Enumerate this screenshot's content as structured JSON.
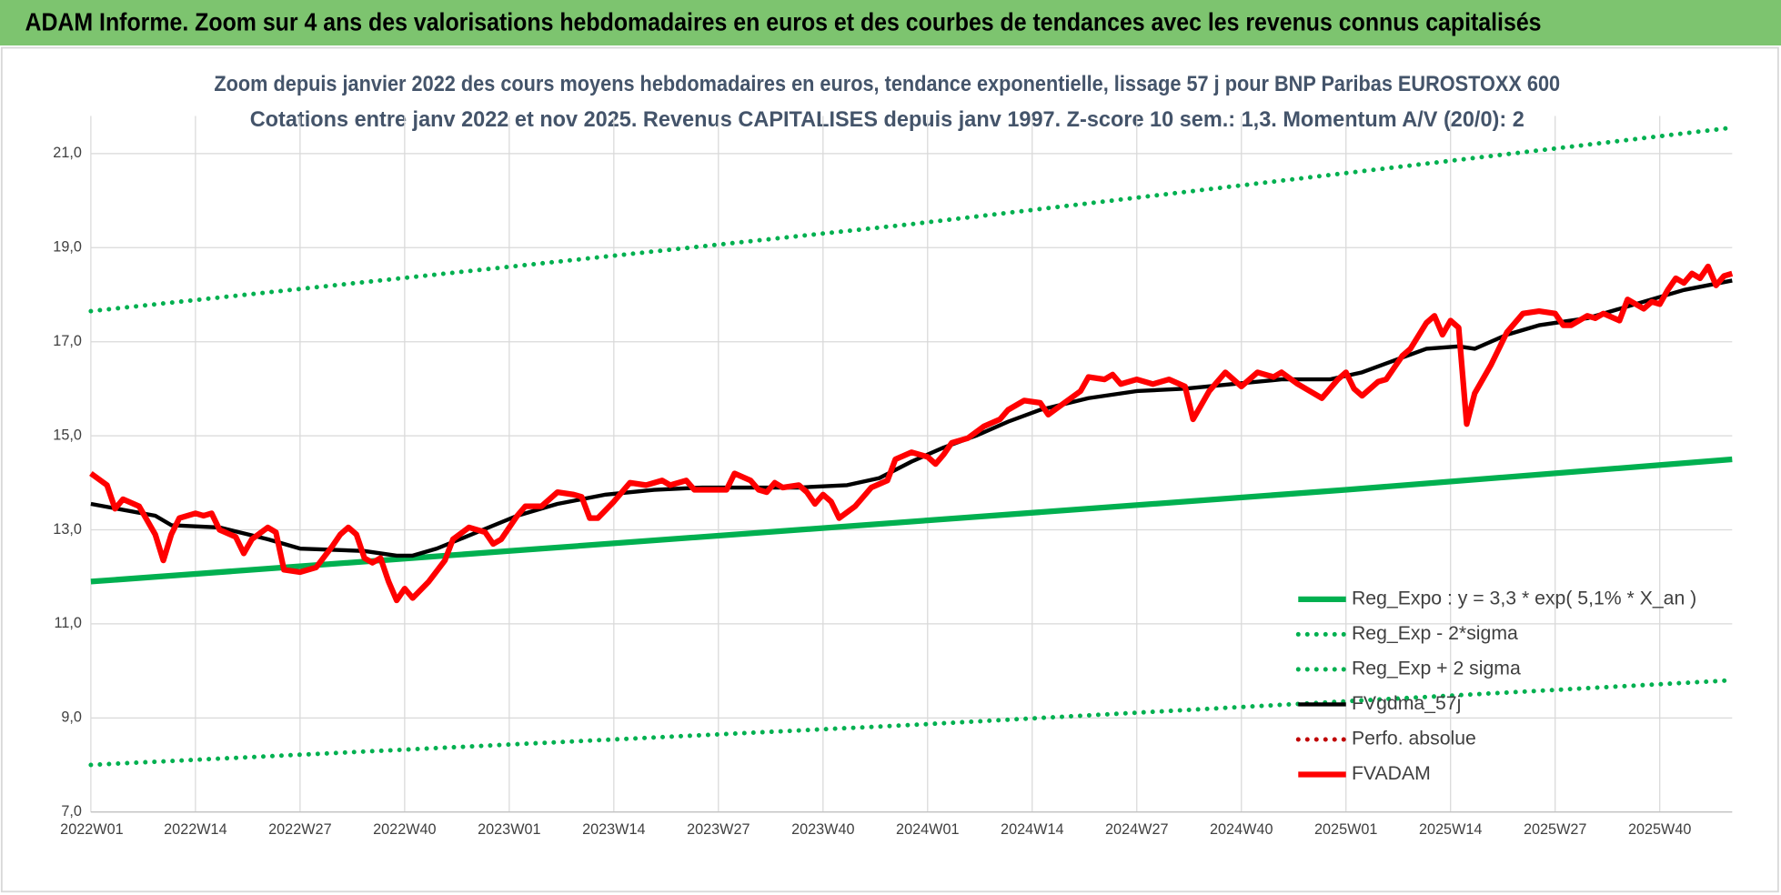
{
  "chart_data": {
    "type": "line",
    "header": "ADAM Informe. Zoom sur 4 ans des valorisations hebdomadaires en euros et des courbes de tendances avec les revenus connus capitalisés",
    "title": "Zoom depuis janvier 2022 des cours moyens hebdomadaires en euros, tendance exponentielle, lissage 57 j pour BNP Paribas EUROSTOXX 600",
    "subtitle": "Cotations entre janv 2022 et nov 2025. Revenus CAPITALISES depuis janv 1997. Z-score 10 sem.: 1,3. Momentum A/V (20/0): 2",
    "xlim": [
      0,
      204
    ],
    "xticks": [
      {
        "value": 0,
        "label": "2022W01"
      },
      {
        "value": 13,
        "label": "2022W14"
      },
      {
        "value": 26,
        "label": "2022W27"
      },
      {
        "value": 39,
        "label": "2022W40"
      },
      {
        "value": 52,
        "label": "2023W01"
      },
      {
        "value": 65,
        "label": "2023W14"
      },
      {
        "value": 78,
        "label": "2023W27"
      },
      {
        "value": 91,
        "label": "2023W40"
      },
      {
        "value": 104,
        "label": "2024W01"
      },
      {
        "value": 117,
        "label": "2024W14"
      },
      {
        "value": 130,
        "label": "2024W27"
      },
      {
        "value": 143,
        "label": "2024W40"
      },
      {
        "value": 156,
        "label": "2025W01"
      },
      {
        "value": 169,
        "label": "2025W14"
      },
      {
        "value": 182,
        "label": "2025W27"
      },
      {
        "value": 195,
        "label": "2025W40"
      }
    ],
    "ylim": [
      7,
      21.8
    ],
    "yticks": [
      {
        "value": 7,
        "label": "7,0"
      },
      {
        "value": 9,
        "label": "9,0"
      },
      {
        "value": 11,
        "label": "11,0"
      },
      {
        "value": 13,
        "label": "13,0"
      },
      {
        "value": 15,
        "label": "15,0"
      },
      {
        "value": 17,
        "label": "17,0"
      },
      {
        "value": 19,
        "label": "19,0"
      },
      {
        "value": 21,
        "label": "21,0"
      }
    ],
    "grid": true,
    "legend": "lower-right",
    "series": [
      {
        "name": "Reg_Expo : y = 3,3 * exp( 5,1% *  X_an )",
        "color": "#00b050",
        "style": "solid",
        "x": [
          0,
          52,
          104,
          156,
          204
        ],
        "values": [
          11.9,
          12.55,
          13.2,
          13.85,
          14.5
        ]
      },
      {
        "name": "Reg_Exp - 2*sigma",
        "color": "#00b050",
        "style": "dotted",
        "x": [
          0,
          102,
          204
        ],
        "values": [
          8.0,
          8.85,
          9.8
        ]
      },
      {
        "name": "Reg_Exp + 2 sigma",
        "color": "#00b050",
        "style": "dotted",
        "x": [
          0,
          102,
          204
        ],
        "values": [
          17.65,
          19.5,
          21.55
        ]
      },
      {
        "name": "FVgdma_57j",
        "color": "#000000",
        "style": "solid",
        "x": [
          0,
          8,
          10,
          16,
          22,
          26,
          34,
          38,
          40,
          43,
          48,
          53,
          58,
          64,
          70,
          76,
          82,
          88,
          94,
          98,
          102,
          106,
          110,
          114,
          118,
          124,
          130,
          136,
          142,
          148,
          154,
          158,
          162,
          166,
          170,
          172,
          176,
          180,
          186,
          192,
          198,
          204
        ],
        "values": [
          13.55,
          13.3,
          13.1,
          13.05,
          12.8,
          12.6,
          12.55,
          12.45,
          12.45,
          12.6,
          12.95,
          13.3,
          13.55,
          13.75,
          13.85,
          13.9,
          13.9,
          13.9,
          13.95,
          14.1,
          14.45,
          14.75,
          15.0,
          15.3,
          15.55,
          15.8,
          15.95,
          16.0,
          16.1,
          16.2,
          16.2,
          16.35,
          16.6,
          16.85,
          16.9,
          16.85,
          17.15,
          17.35,
          17.5,
          17.8,
          18.1,
          18.3
        ]
      },
      {
        "name": "Perfo. absolue",
        "color": "#c00000",
        "style": "dotted",
        "x": [],
        "values": []
      },
      {
        "name": "FVADAM",
        "color": "#ff0000",
        "style": "solid",
        "x": [
          0,
          2,
          3,
          4,
          6,
          8,
          9,
          10,
          11,
          13,
          14,
          15,
          16,
          18,
          19,
          20,
          22,
          23,
          24,
          26,
          28,
          30,
          31,
          32,
          33,
          34,
          35,
          36,
          37,
          38,
          39,
          40,
          42,
          44,
          45,
          47,
          49,
          50,
          51,
          53,
          54,
          56,
          58,
          60,
          61,
          62,
          63,
          65,
          67,
          69,
          71,
          72,
          74,
          75,
          77,
          79,
          80,
          82,
          83,
          84,
          85,
          86,
          88,
          89,
          90,
          91,
          92,
          93,
          95,
          97,
          99,
          100,
          102,
          104,
          105,
          106,
          107,
          109,
          111,
          113,
          114,
          116,
          118,
          119,
          121,
          123,
          124,
          126,
          127,
          128,
          130,
          132,
          134,
          136,
          137,
          139,
          141,
          143,
          145,
          147,
          148,
          150,
          152,
          153,
          155,
          156,
          157,
          158,
          160,
          161,
          163,
          164,
          166,
          167,
          168,
          169,
          170,
          171,
          172,
          174,
          176,
          178,
          180,
          182,
          183,
          184,
          186,
          187,
          188,
          190,
          191,
          193,
          194,
          195,
          196,
          197,
          198,
          199,
          200,
          201,
          202,
          203,
          204
        ],
        "values": [
          14.2,
          13.95,
          13.45,
          13.65,
          13.5,
          12.9,
          12.35,
          12.9,
          13.25,
          13.35,
          13.3,
          13.35,
          13.0,
          12.85,
          12.5,
          12.8,
          13.05,
          12.95,
          12.15,
          12.1,
          12.2,
          12.65,
          12.9,
          13.05,
          12.9,
          12.4,
          12.3,
          12.4,
          11.9,
          11.5,
          11.75,
          11.55,
          11.9,
          12.35,
          12.8,
          13.05,
          12.95,
          12.7,
          12.8,
          13.3,
          13.5,
          13.5,
          13.8,
          13.75,
          13.7,
          13.25,
          13.25,
          13.6,
          14.0,
          13.95,
          14.05,
          13.95,
          14.05,
          13.85,
          13.85,
          13.85,
          14.2,
          14.05,
          13.85,
          13.8,
          14.0,
          13.9,
          13.95,
          13.8,
          13.55,
          13.75,
          13.6,
          13.25,
          13.5,
          13.9,
          14.05,
          14.5,
          14.65,
          14.55,
          14.4,
          14.6,
          14.85,
          14.95,
          15.2,
          15.35,
          15.55,
          15.75,
          15.7,
          15.45,
          15.7,
          15.95,
          16.25,
          16.2,
          16.3,
          16.1,
          16.2,
          16.1,
          16.2,
          16.05,
          15.35,
          15.95,
          16.35,
          16.05,
          16.35,
          16.25,
          16.35,
          16.1,
          15.9,
          15.8,
          16.2,
          16.35,
          16.0,
          15.85,
          16.15,
          16.2,
          16.7,
          16.85,
          17.4,
          17.55,
          17.15,
          17.45,
          17.3,
          15.25,
          15.9,
          16.5,
          17.2,
          17.6,
          17.65,
          17.6,
          17.35,
          17.35,
          17.55,
          17.5,
          17.6,
          17.45,
          17.9,
          17.7,
          17.85,
          17.8,
          18.1,
          18.35,
          18.25,
          18.45,
          18.35,
          18.6,
          18.2,
          18.4,
          18.45
        ]
      }
    ]
  }
}
